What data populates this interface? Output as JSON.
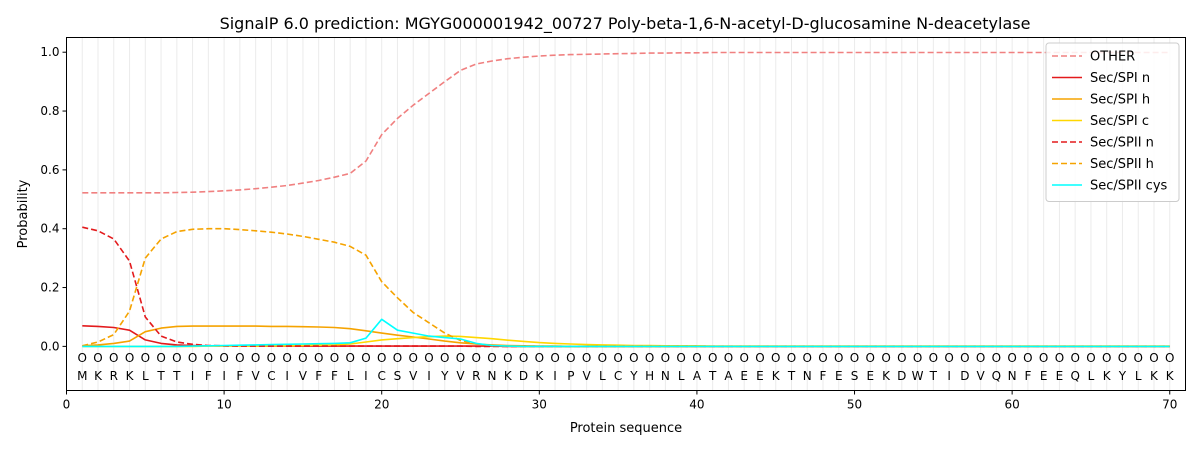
{
  "chart_data": {
    "type": "line",
    "title": "SignalP 6.0 prediction: MGYG000001942_00727 Poly-beta-1,6-N-acetyl-D-glucosamine N-deacetylase",
    "xlabel": "Protein sequence",
    "ylabel": "Probability",
    "xlim": [
      0,
      71
    ],
    "ylim": [
      -0.15,
      1.05
    ],
    "xticks": [
      0,
      10,
      20,
      30,
      40,
      50,
      60,
      70
    ],
    "yticks": [
      0.0,
      0.2,
      0.4,
      0.6,
      0.8,
      1.0
    ],
    "ytick_labels": [
      "0.0",
      "0.2",
      "0.4",
      "0.6",
      "0.8",
      "1.0"
    ],
    "grid": "vertical lines at each residue position",
    "legend_position": "top-right",
    "residue_marker": "O",
    "sequence": [
      "M",
      "K",
      "R",
      "K",
      "L",
      "T",
      "T",
      "I",
      "F",
      "I",
      "F",
      "V",
      "C",
      "I",
      "V",
      "F",
      "F",
      "L",
      "I",
      "C",
      "S",
      "V",
      "I",
      "Y",
      "V",
      "R",
      "N",
      "K",
      "D",
      "K",
      "I",
      "P",
      "V",
      "L",
      "C",
      "Y",
      "H",
      "N",
      "L",
      "A",
      "T",
      "A",
      "E",
      "E",
      "K",
      "T",
      "N",
      "F",
      "E",
      "S",
      "E",
      "K",
      "D",
      "W",
      "T",
      "I",
      "D",
      "V",
      "Q",
      "N",
      "F",
      "E",
      "E",
      "Q",
      "L",
      "K",
      "Y",
      "L",
      "K",
      "K"
    ],
    "series": [
      {
        "name": "OTHER",
        "color": "#f08080",
        "dash": "dashed",
        "values": [
          0.522,
          0.522,
          0.522,
          0.522,
          0.522,
          0.522,
          0.523,
          0.524,
          0.526,
          0.529,
          0.532,
          0.536,
          0.541,
          0.547,
          0.555,
          0.564,
          0.575,
          0.588,
          0.63,
          0.72,
          0.775,
          0.82,
          0.86,
          0.9,
          0.938,
          0.96,
          0.97,
          0.978,
          0.983,
          0.987,
          0.99,
          0.992,
          0.993,
          0.994,
          0.995,
          0.996,
          0.997,
          0.997,
          0.998,
          0.998,
          0.999,
          0.999,
          0.999,
          0.999,
          0.999,
          0.999,
          0.999,
          0.999,
          0.999,
          0.999,
          0.999,
          0.999,
          0.999,
          0.999,
          0.999,
          0.999,
          0.999,
          0.999,
          0.999,
          0.999,
          0.999,
          0.999,
          0.999,
          0.999,
          0.999,
          0.999,
          0.999,
          0.999,
          0.999,
          0.999
        ]
      },
      {
        "name": "Sec/SPI n",
        "color": "#e31a1c",
        "dash": "solid",
        "values": [
          0.07,
          0.068,
          0.064,
          0.055,
          0.022,
          0.01,
          0.005,
          0.003,
          0.002,
          0.002,
          0.002,
          0.001,
          0.001,
          0.001,
          0.001,
          0.001,
          0.001,
          0.001,
          0.001,
          0.001,
          0.001,
          0.001,
          0.001,
          0.001,
          0.001,
          0.001,
          0.001,
          0,
          0,
          0,
          0,
          0,
          0,
          0,
          0,
          0,
          0,
          0,
          0,
          0,
          0,
          0,
          0,
          0,
          0,
          0,
          0,
          0,
          0,
          0,
          0,
          0,
          0,
          0,
          0,
          0,
          0,
          0,
          0,
          0,
          0,
          0,
          0,
          0,
          0,
          0,
          0,
          0,
          0,
          0
        ]
      },
      {
        "name": "Sec/SPI h",
        "color": "#f5a300",
        "dash": "solid",
        "values": [
          0.002,
          0.005,
          0.01,
          0.018,
          0.05,
          0.062,
          0.068,
          0.069,
          0.069,
          0.069,
          0.069,
          0.069,
          0.068,
          0.068,
          0.067,
          0.066,
          0.064,
          0.06,
          0.053,
          0.045,
          0.038,
          0.032,
          0.025,
          0.018,
          0.012,
          0.008,
          0.005,
          0.003,
          0.002,
          0.001,
          0.001,
          0,
          0,
          0,
          0,
          0,
          0,
          0,
          0,
          0,
          0,
          0,
          0,
          0,
          0,
          0,
          0,
          0,
          0,
          0,
          0,
          0,
          0,
          0,
          0,
          0,
          0,
          0,
          0,
          0,
          0,
          0,
          0,
          0,
          0,
          0,
          0,
          0,
          0,
          0
        ]
      },
      {
        "name": "Sec/SPI c",
        "color": "#ffd700",
        "dash": "solid",
        "values": [
          0,
          0,
          0,
          0,
          0,
          0,
          0,
          0,
          0.001,
          0.001,
          0.001,
          0.001,
          0.002,
          0.002,
          0.003,
          0.004,
          0.005,
          0.008,
          0.015,
          0.022,
          0.026,
          0.03,
          0.033,
          0.035,
          0.034,
          0.03,
          0.026,
          0.021,
          0.017,
          0.013,
          0.01,
          0.008,
          0.006,
          0.005,
          0.004,
          0.003,
          0.003,
          0.002,
          0.002,
          0.002,
          0.001,
          0.001,
          0.001,
          0.001,
          0.001,
          0.001,
          0.001,
          0.001,
          0.001,
          0.001,
          0.001,
          0.001,
          0.001,
          0.001,
          0.001,
          0.001,
          0.001,
          0.001,
          0.001,
          0.001,
          0.001,
          0.001,
          0.001,
          0.001,
          0.001,
          0.001,
          0.001,
          0.001,
          0.001,
          0.001
        ]
      },
      {
        "name": "Sec/SPII n",
        "color": "#e31a1c",
        "dash": "dashed",
        "values": [
          0.405,
          0.393,
          0.365,
          0.29,
          0.1,
          0.035,
          0.015,
          0.007,
          0.003,
          0.002,
          0.001,
          0.001,
          0.001,
          0.001,
          0.001,
          0.001,
          0.001,
          0.001,
          0.001,
          0.001,
          0.001,
          0.001,
          0.001,
          0.001,
          0.001,
          0,
          0,
          0,
          0,
          0,
          0,
          0,
          0,
          0,
          0,
          0,
          0,
          0,
          0,
          0,
          0,
          0,
          0,
          0,
          0,
          0,
          0,
          0,
          0,
          0,
          0,
          0,
          0,
          0,
          0,
          0,
          0,
          0,
          0,
          0,
          0,
          0,
          0,
          0,
          0,
          0,
          0,
          0,
          0,
          0
        ]
      },
      {
        "name": "Sec/SPII h",
        "color": "#f5a300",
        "dash": "dashed",
        "values": [
          0.002,
          0.015,
          0.04,
          0.12,
          0.3,
          0.365,
          0.39,
          0.398,
          0.4,
          0.4,
          0.397,
          0.393,
          0.388,
          0.382,
          0.374,
          0.364,
          0.354,
          0.34,
          0.31,
          0.22,
          0.165,
          0.115,
          0.08,
          0.045,
          0.02,
          0.008,
          0.003,
          0.001,
          0,
          0,
          0,
          0,
          0,
          0,
          0,
          0,
          0,
          0,
          0,
          0,
          0,
          0,
          0,
          0,
          0,
          0,
          0,
          0,
          0,
          0,
          0,
          0,
          0,
          0,
          0,
          0,
          0,
          0,
          0,
          0,
          0,
          0,
          0,
          0,
          0,
          0,
          0,
          0,
          0,
          0
        ]
      },
      {
        "name": "Sec/SPII cys",
        "color": "#00ffff",
        "dash": "solid",
        "values": [
          0,
          0,
          0,
          0,
          0,
          0,
          0,
          0.001,
          0.002,
          0.003,
          0.004,
          0.005,
          0.006,
          0.007,
          0.008,
          0.009,
          0.01,
          0.012,
          0.028,
          0.092,
          0.055,
          0.045,
          0.035,
          0.03,
          0.025,
          0.01,
          0.003,
          0.001,
          0,
          0,
          0,
          0,
          0,
          0,
          0,
          0,
          0,
          0,
          0,
          0,
          0,
          0,
          0,
          0,
          0,
          0,
          0,
          0,
          0,
          0,
          0,
          0,
          0,
          0,
          0,
          0,
          0,
          0,
          0,
          0,
          0,
          0,
          0,
          0,
          0,
          0,
          0,
          0,
          0,
          0
        ]
      }
    ]
  }
}
